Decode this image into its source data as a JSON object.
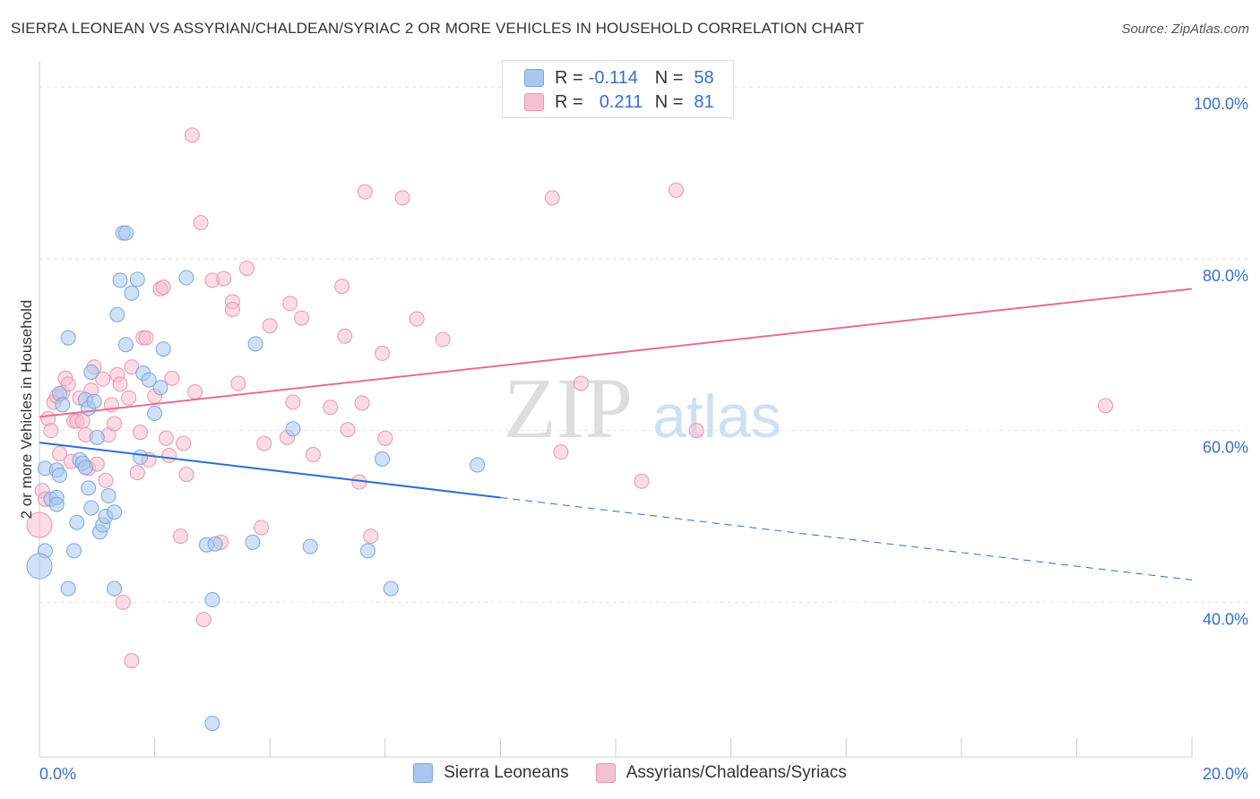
{
  "header": {
    "title": "SIERRA LEONEAN VS ASSYRIAN/CHALDEAN/SYRIAC 2 OR MORE VEHICLES IN HOUSEHOLD CORRELATION CHART",
    "source": "Source: ZipAtlas.com"
  },
  "legend": {
    "rows": [
      {
        "r_label": "R =",
        "r_value": "-0.114",
        "n_label": "N =",
        "n_value": "58"
      },
      {
        "r_label": "R =",
        "r_value": "0.211",
        "n_label": "N =",
        "n_value": "81"
      }
    ]
  },
  "watermark": {
    "zip": "ZIP",
    "atlas": "atlas"
  },
  "colors": {
    "blue_fill": "#a9c8ef",
    "blue_stroke": "#7aa7e0",
    "blue_line": "#2a6fd1",
    "pink_fill": "#f7c0d0",
    "pink_stroke": "#e996b1",
    "pink_line": "#e46e96",
    "tick_label": "#3a6fc7"
  },
  "chart_data": {
    "type": "scatter",
    "title": "SIERRA LEONEAN VS ASSYRIAN/CHALDEAN/SYRIAC 2 OR MORE VEHICLES IN HOUSEHOLD CORRELATION CHART",
    "xlabel": "",
    "ylabel": "2 or more Vehicles in Household",
    "xlim": [
      0,
      20
    ],
    "ylim": [
      22,
      102
    ],
    "x_tick_labels": [
      "0.0%",
      "20.0%"
    ],
    "y_ticks": [
      40,
      60,
      80,
      100
    ],
    "y_tick_labels": [
      "40.0%",
      "60.0%",
      "80.0%",
      "100.0%"
    ],
    "grid": true,
    "series": [
      {
        "name": "Sierra Leoneans",
        "color": "#a9c8ef",
        "stats": {
          "R": -0.114,
          "N": 58
        },
        "trend": {
          "x0": 0,
          "y0": 58.6,
          "x1": 8,
          "y1": 52.2,
          "dash_x1": 20,
          "dash_y1": 42.6
        },
        "points": [
          [
            0.1,
            55.6,
            1
          ],
          [
            0.1,
            46.0,
            1
          ],
          [
            0.0,
            44.2,
            2
          ],
          [
            0.2,
            52.0,
            1
          ],
          [
            0.3,
            52.2,
            1
          ],
          [
            0.3,
            51.4,
            1
          ],
          [
            0.3,
            55.4,
            1
          ],
          [
            0.35,
            54.8,
            1
          ],
          [
            0.35,
            64.3,
            1
          ],
          [
            0.4,
            63.0,
            1
          ],
          [
            0.5,
            41.6,
            1
          ],
          [
            0.5,
            70.8,
            1
          ],
          [
            0.6,
            46.0,
            1
          ],
          [
            0.65,
            49.3,
            1
          ],
          [
            0.7,
            56.6,
            1
          ],
          [
            0.75,
            56.2,
            1
          ],
          [
            0.8,
            55.7,
            1
          ],
          [
            0.8,
            63.6,
            1
          ],
          [
            0.85,
            53.3,
            1
          ],
          [
            0.85,
            62.6,
            1
          ],
          [
            0.9,
            51.0,
            1
          ],
          [
            0.9,
            66.8,
            1
          ],
          [
            0.95,
            63.4,
            1
          ],
          [
            1.0,
            59.2,
            1
          ],
          [
            1.05,
            48.2,
            1
          ],
          [
            1.1,
            49.0,
            1
          ],
          [
            1.15,
            50.0,
            1
          ],
          [
            1.2,
            52.4,
            1
          ],
          [
            1.3,
            41.6,
            1
          ],
          [
            1.3,
            50.5,
            1
          ],
          [
            1.35,
            73.5,
            1
          ],
          [
            1.4,
            77.5,
            1
          ],
          [
            1.45,
            83.0,
            1
          ],
          [
            1.5,
            83.0,
            1
          ],
          [
            1.5,
            70.0,
            1
          ],
          [
            1.6,
            76.0,
            1
          ],
          [
            1.7,
            77.6,
            1
          ],
          [
            1.75,
            56.9,
            1
          ],
          [
            1.8,
            66.7,
            1
          ],
          [
            1.9,
            65.9,
            1
          ],
          [
            2.0,
            62.0,
            1
          ],
          [
            2.1,
            65.0,
            1
          ],
          [
            2.15,
            69.5,
            1
          ],
          [
            2.55,
            77.8,
            1
          ],
          [
            2.9,
            46.7,
            1
          ],
          [
            3.0,
            40.3,
            1
          ],
          [
            3.05,
            46.8,
            1
          ],
          [
            3.0,
            25.9,
            1
          ],
          [
            3.7,
            47.0,
            1
          ],
          [
            3.75,
            70.1,
            1
          ],
          [
            4.4,
            60.2,
            1
          ],
          [
            4.7,
            46.5,
            1
          ],
          [
            5.7,
            46.0,
            1
          ],
          [
            5.95,
            56.7,
            1
          ],
          [
            6.1,
            41.6,
            1
          ],
          [
            7.6,
            56.0,
            1
          ]
        ]
      },
      {
        "name": "Assyrians/Chaldeans/Syriacs",
        "color": "#f7c0d0",
        "stats": {
          "R": 0.211,
          "N": 81
        },
        "trend": {
          "x0": 0,
          "y0": 61.6,
          "x1": 20,
          "y1": 76.5
        },
        "points": [
          [
            0.0,
            49.0,
            2
          ],
          [
            0.05,
            53.0,
            1
          ],
          [
            0.1,
            52.0,
            1
          ],
          [
            0.15,
            61.4,
            1
          ],
          [
            0.2,
            60.0,
            1
          ],
          [
            0.25,
            63.3,
            1
          ],
          [
            0.3,
            64.0,
            1
          ],
          [
            0.35,
            57.3,
            1
          ],
          [
            0.4,
            64.4,
            1
          ],
          [
            0.45,
            66.1,
            1
          ],
          [
            0.5,
            65.4,
            1
          ],
          [
            0.55,
            56.4,
            1
          ],
          [
            0.6,
            61.1,
            1
          ],
          [
            0.65,
            61.1,
            1
          ],
          [
            0.7,
            63.8,
            1
          ],
          [
            0.75,
            61.1,
            1
          ],
          [
            0.8,
            59.5,
            1
          ],
          [
            0.85,
            55.6,
            1
          ],
          [
            0.9,
            64.7,
            1
          ],
          [
            0.95,
            67.4,
            1
          ],
          [
            1.0,
            56.1,
            1
          ],
          [
            1.1,
            66.0,
            1
          ],
          [
            1.15,
            54.2,
            1
          ],
          [
            1.2,
            59.5,
            1
          ],
          [
            1.25,
            63.0,
            1
          ],
          [
            1.3,
            60.8,
            1
          ],
          [
            1.35,
            66.5,
            1
          ],
          [
            1.4,
            65.4,
            1
          ],
          [
            1.45,
            40.0,
            1
          ],
          [
            1.55,
            63.8,
            1
          ],
          [
            1.6,
            67.4,
            1
          ],
          [
            1.6,
            33.2,
            1
          ],
          [
            1.7,
            55.1,
            1
          ],
          [
            1.75,
            59.8,
            1
          ],
          [
            1.8,
            70.8,
            1
          ],
          [
            1.85,
            70.8,
            1
          ],
          [
            1.9,
            56.6,
            1
          ],
          [
            2.0,
            64.0,
            1
          ],
          [
            2.1,
            76.5,
            1
          ],
          [
            2.15,
            76.7,
            1
          ],
          [
            2.2,
            59.1,
            1
          ],
          [
            2.25,
            57.1,
            1
          ],
          [
            2.3,
            66.1,
            1
          ],
          [
            2.45,
            47.7,
            1
          ],
          [
            2.5,
            58.5,
            1
          ],
          [
            2.55,
            54.9,
            1
          ],
          [
            2.65,
            94.4,
            1
          ],
          [
            2.7,
            64.5,
            1
          ],
          [
            2.8,
            84.2,
            1
          ],
          [
            2.85,
            38.0,
            1
          ],
          [
            3.0,
            77.5,
            1
          ],
          [
            3.15,
            47.0,
            1
          ],
          [
            3.2,
            77.7,
            1
          ],
          [
            3.35,
            75.0,
            1
          ],
          [
            3.35,
            74.1,
            1
          ],
          [
            3.45,
            65.5,
            1
          ],
          [
            3.6,
            78.9,
            1
          ],
          [
            3.85,
            48.7,
            1
          ],
          [
            3.9,
            58.5,
            1
          ],
          [
            4.0,
            72.2,
            1
          ],
          [
            4.3,
            59.2,
            1
          ],
          [
            4.35,
            74.8,
            1
          ],
          [
            4.4,
            63.3,
            1
          ],
          [
            4.55,
            73.1,
            1
          ],
          [
            4.75,
            57.2,
            1
          ],
          [
            5.05,
            62.7,
            1
          ],
          [
            5.25,
            76.8,
            1
          ],
          [
            5.3,
            71.0,
            1
          ],
          [
            5.35,
            60.1,
            1
          ],
          [
            5.55,
            54.0,
            1
          ],
          [
            5.6,
            63.2,
            1
          ],
          [
            5.65,
            87.8,
            1
          ],
          [
            5.75,
            47.7,
            1
          ],
          [
            5.95,
            69.0,
            1
          ],
          [
            6.0,
            59.1,
            1
          ],
          [
            6.3,
            87.1,
            1
          ],
          [
            6.55,
            73.0,
            1
          ],
          [
            7.0,
            70.6,
            1
          ],
          [
            8.9,
            87.1,
            1
          ],
          [
            9.05,
            57.5,
            1
          ],
          [
            9.4,
            65.5,
            1
          ],
          [
            10.45,
            54.1,
            1
          ],
          [
            11.05,
            88.0,
            1
          ],
          [
            11.4,
            60.0,
            1
          ],
          [
            18.5,
            62.9,
            1
          ]
        ]
      }
    ]
  }
}
